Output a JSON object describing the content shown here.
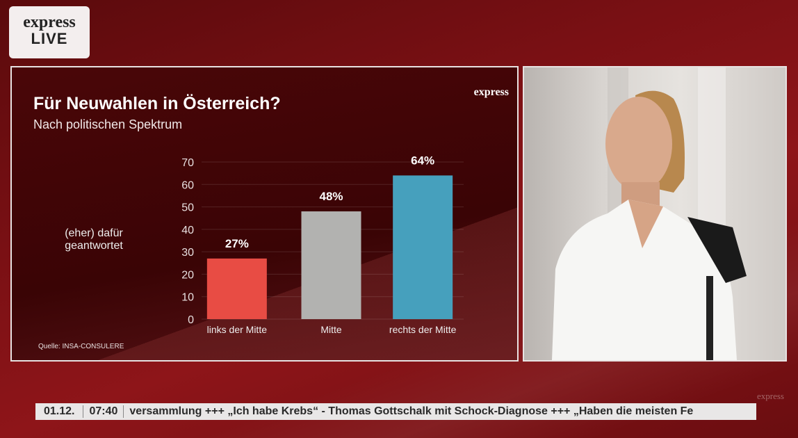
{
  "logo": {
    "brand": "express",
    "live": "LIVE"
  },
  "chart_panel": {
    "brand": "express",
    "source": "Quelle:  INSA-CONSULERE"
  },
  "chart_data": {
    "type": "bar",
    "title": "Für Neuwahlen in Österreich?",
    "subtitle": "Nach politischen Spektrum",
    "ylabel": "(eher) dafür geantwortet",
    "categories": [
      "links der Mitte",
      "Mitte",
      "rechts der Mitte"
    ],
    "values": [
      27,
      48,
      64
    ],
    "data_labels": [
      "27%",
      "48%",
      "64%"
    ],
    "colors": [
      "#e84c44",
      "#b2b2b0",
      "#46a0bd"
    ],
    "ylim": [
      0,
      70
    ],
    "yticks": [
      "0",
      "10",
      "20",
      "30",
      "40",
      "50",
      "60",
      "70"
    ],
    "grid": true
  },
  "ticker": {
    "date": "01.12.",
    "time": "07:40",
    "text": "versammlung  +++ „Ich habe Krebs“ - Thomas Gottschalk mit Schock-Diagnose  +++ „Haben die meisten Fe"
  },
  "watermark": "express"
}
